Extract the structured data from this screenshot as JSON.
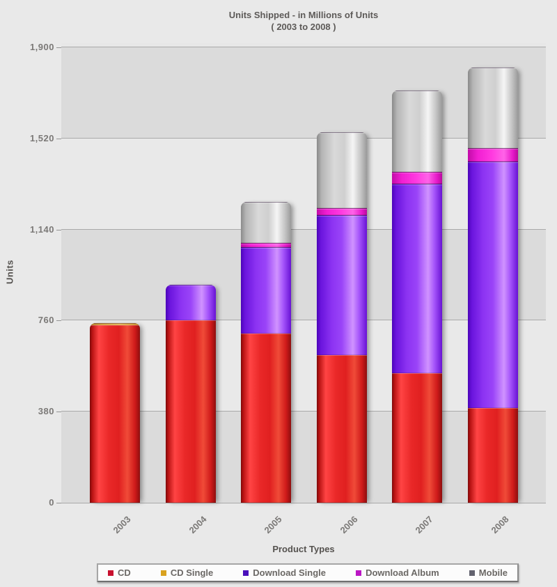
{
  "title": {
    "line1": "Units Shipped - in Millions of Units",
    "line2": "( 2003 to 2008 )"
  },
  "axes": {
    "y_label": "Units",
    "x_label": "Product Types",
    "y_tick_labels": [
      "0",
      "380",
      "760",
      "1,140",
      "1,520",
      "1,900"
    ],
    "y_tick_values": [
      0,
      380,
      760,
      1140,
      1520,
      1900
    ]
  },
  "legend": {
    "position": "bottom",
    "items": [
      {
        "label": "CD",
        "color": "#c8102e"
      },
      {
        "label": "CD Single",
        "color": "#d9a21f"
      },
      {
        "label": "Download Single",
        "color": "#4a10bb"
      },
      {
        "label": "Download Album",
        "color": "#bb16c4"
      },
      {
        "label": "Mobile",
        "color": "#63636f"
      }
    ]
  },
  "chart_data": {
    "type": "bar",
    "stacked": true,
    "title": "Units Shipped - in Millions of Units ( 2003 to 2008 )",
    "xlabel": "Product Types",
    "ylabel": "Units",
    "ylim": [
      0,
      1900
    ],
    "y_tick_step": 380,
    "grid": true,
    "legend_position": "bottom",
    "categories": [
      "2003",
      "2004",
      "2005",
      "2006",
      "2007",
      "2008"
    ],
    "series": [
      {
        "name": "CD",
        "slug": "cd",
        "values": [
          740,
          760,
          705,
          615,
          540,
          395
        ]
      },
      {
        "name": "CD Single",
        "slug": "cd-single",
        "values": [
          10,
          0,
          0,
          0,
          0,
          0
        ]
      },
      {
        "name": "Download Single",
        "slug": "download-single",
        "values": [
          0,
          150,
          360,
          585,
          790,
          1030
        ]
      },
      {
        "name": "Download Album",
        "slug": "download-album",
        "values": [
          0,
          0,
          20,
          30,
          50,
          55
        ]
      },
      {
        "name": "Mobile",
        "slug": "mobile",
        "values": [
          0,
          0,
          170,
          315,
          340,
          335
        ]
      }
    ],
    "totals": [
      750,
      910,
      1255,
      1545,
      1720,
      1815
    ]
  }
}
